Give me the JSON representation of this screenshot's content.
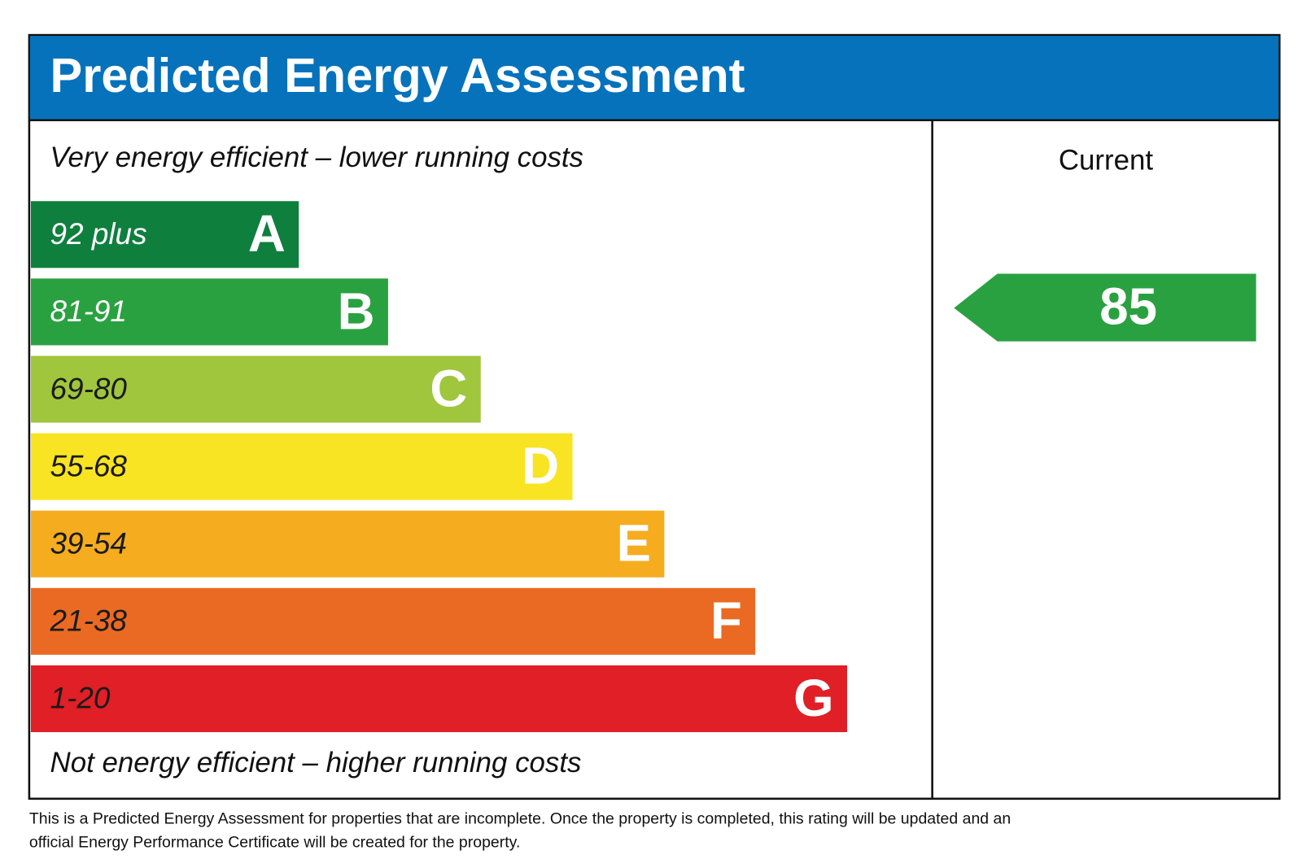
{
  "header": {
    "title": "Predicted Energy Assessment"
  },
  "scale": {
    "top_text": "Very energy efficient – lower running costs",
    "bottom_text": "Not energy efficient – higher running costs",
    "bands": [
      {
        "range": "92 plus",
        "letter": "A",
        "color": "#0f7f3e",
        "text_color": "#ffffff"
      },
      {
        "range": "81-91",
        "letter": "B",
        "color": "#2aa140",
        "text_color": "#ffffff"
      },
      {
        "range": "69-80",
        "letter": "C",
        "color": "#9fc63d",
        "text_color": "#1a1a1a"
      },
      {
        "range": "55-68",
        "letter": "D",
        "color": "#f8e423",
        "text_color": "#1a1a1a"
      },
      {
        "range": "39-54",
        "letter": "E",
        "color": "#f5ad1f",
        "text_color": "#1a1a1a"
      },
      {
        "range": "21-38",
        "letter": "F",
        "color": "#ea6a23",
        "text_color": "#1a1a1a"
      },
      {
        "range": "1-20",
        "letter": "G",
        "color": "#e01f26",
        "text_color": "#1a1a1a"
      }
    ]
  },
  "current": {
    "label": "Current",
    "value": "85",
    "color": "#2aa140"
  },
  "footer": {
    "lines": [
      "This is a Predicted Energy Assessment for properties that are incomplete. Once the property is completed, this rating will be updated and an",
      "official Energy Performance Certificate will be created for the property."
    ]
  }
}
